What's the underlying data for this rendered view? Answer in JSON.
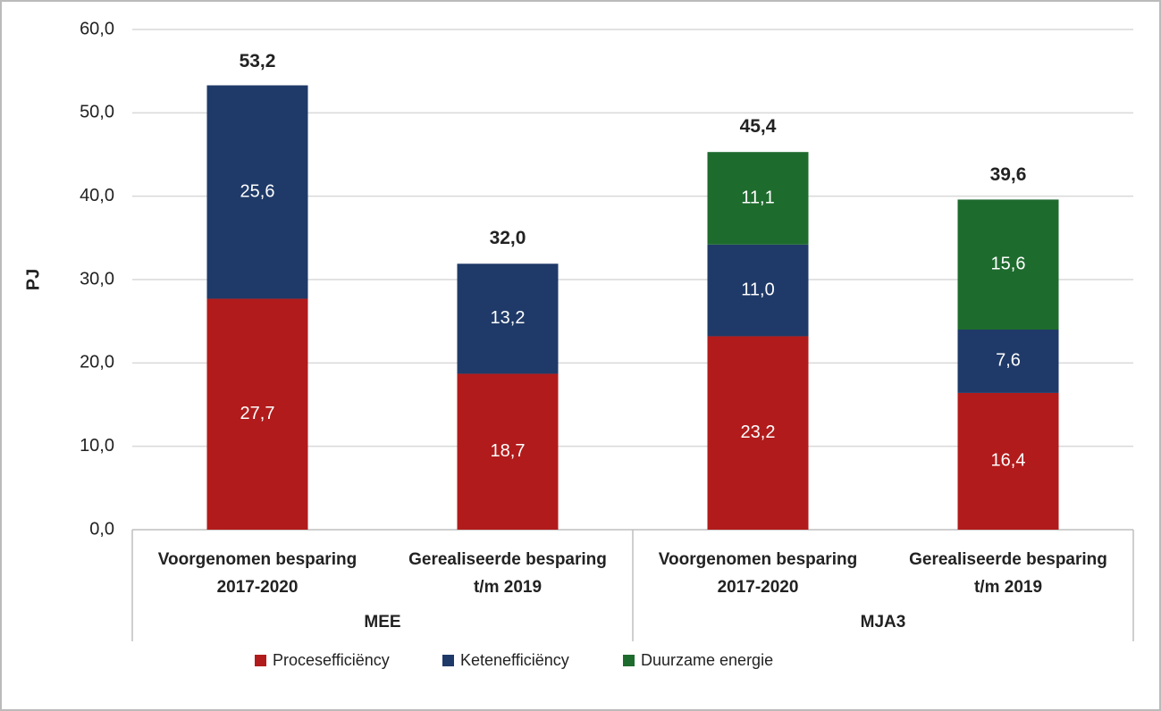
{
  "chart_data": {
    "type": "stacked_bar",
    "y_label": "PJ",
    "ylim": [
      0,
      60
    ],
    "yticks": [
      {
        "value": 0,
        "label": "0,0"
      },
      {
        "value": 10,
        "label": "10,0"
      },
      {
        "value": 20,
        "label": "20,0"
      },
      {
        "value": 30,
        "label": "30,0"
      },
      {
        "value": 40,
        "label": "40,0"
      },
      {
        "value": 50,
        "label": "50,0"
      },
      {
        "value": 60,
        "label": "60,0"
      }
    ],
    "grid": true,
    "categories": [
      [
        "Voorgenomen besparing",
        "2017-2020"
      ],
      [
        "Gerealiseerde besparing",
        "t/m 2019"
      ],
      [
        "Voorgenomen besparing",
        "2017-2020"
      ],
      [
        "Gerealiseerde besparing",
        "t/m 2019"
      ]
    ],
    "groups": [
      {
        "name": "MEE",
        "size": 2
      },
      {
        "name": "MJA3",
        "size": 2
      }
    ],
    "series": [
      {
        "name": "Procesefficiëncy",
        "color": "#b11b1b",
        "values": [
          27.7,
          18.7,
          23.2,
          16.4
        ],
        "value_labels": [
          "27,7",
          "18,7",
          "23,2",
          "16,4"
        ]
      },
      {
        "name": "Ketenefficiëncy",
        "color": "#1f3a68",
        "values": [
          25.6,
          13.2,
          11.0,
          7.6
        ],
        "value_labels": [
          "25,6",
          "13,2",
          "11,0",
          "7,6"
        ]
      },
      {
        "name": "Duurzame energie",
        "color": "#1e6b2e",
        "values": [
          null,
          null,
          11.1,
          15.6
        ],
        "value_labels": [
          null,
          null,
          "11,1",
          "15,6"
        ]
      }
    ],
    "totals": [
      53.2,
      32.0,
      45.4,
      39.6
    ],
    "total_labels": [
      "53,2",
      "32,0",
      "45,4",
      "39,6"
    ],
    "legend": "bottom"
  }
}
